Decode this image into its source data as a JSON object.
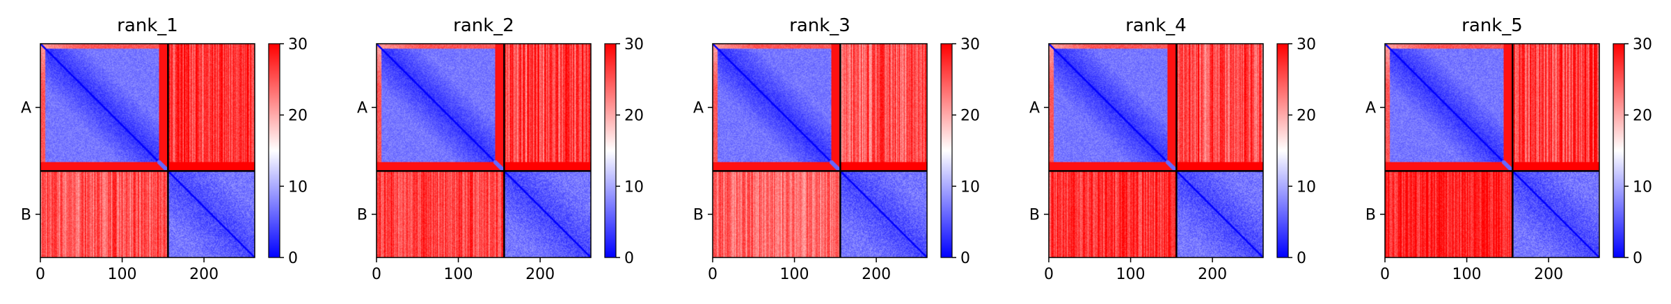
{
  "chart_data": {
    "type": "heatmap",
    "colormap": "bwr",
    "colorbar": {
      "vmin": 0,
      "vmax": 30,
      "ticks": [
        "0",
        "10",
        "20",
        "30"
      ]
    },
    "x_ticks": [
      0,
      100,
      200
    ],
    "x_range": [
      0,
      262
    ],
    "chains": [
      {
        "label": "A",
        "start": 0,
        "end": 156
      },
      {
        "label": "B",
        "start": 156,
        "end": 262
      }
    ],
    "panels": [
      {
        "title": "rank_1",
        "block_means": {
          "AA": 3,
          "AB": 27,
          "BA": 25,
          "BB": 4
        }
      },
      {
        "title": "rank_2",
        "block_means": {
          "AA": 3,
          "AB": 26,
          "BA": 26,
          "BB": 4
        }
      },
      {
        "title": "rank_3",
        "block_means": {
          "AA": 3,
          "AB": 25,
          "BA": 24,
          "BB": 4
        }
      },
      {
        "title": "rank_4",
        "block_means": {
          "AA": 3,
          "AB": 26,
          "BA": 27,
          "BB": 4
        }
      },
      {
        "title": "rank_5",
        "block_means": {
          "AA": 3,
          "AB": 26,
          "BA": 28,
          "BB": 4
        }
      }
    ]
  }
}
